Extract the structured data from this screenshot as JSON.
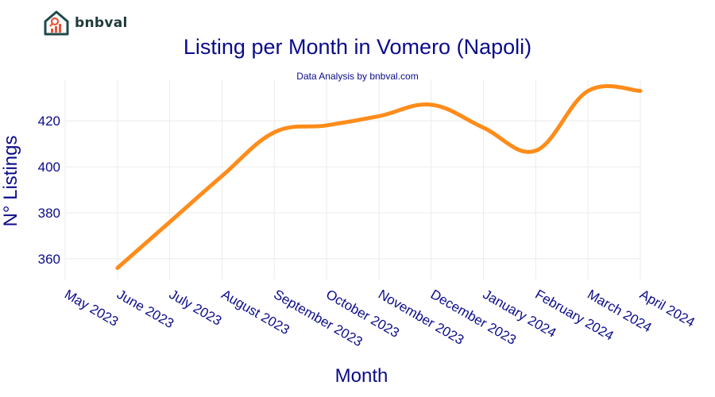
{
  "brand": {
    "name": "bnbval",
    "logo_icon": "house-chart-icon"
  },
  "chart_data": {
    "type": "line",
    "title": "Listing per Month in Vomero (Napoli)",
    "subtitle": "Data Analysis by bnbval.com",
    "xlabel": "Month",
    "ylabel": "N° Listings",
    "categories": [
      "May 2023",
      "June 2023",
      "July 2023",
      "August 2023",
      "September 2023",
      "October 2023",
      "November 2023",
      "December 2023",
      "January 2024",
      "February 2024",
      "March 2024",
      "April 2024"
    ],
    "series": [
      {
        "values": [
          null,
          356,
          376,
          396,
          415,
          418,
          422,
          427,
          417,
          407,
          433,
          433
        ],
        "color": "#ff8c1a"
      }
    ],
    "yticks": [
      360,
      380,
      400,
      420
    ],
    "ylim": [
      351,
      438
    ],
    "grid": true,
    "legend": "none"
  }
}
